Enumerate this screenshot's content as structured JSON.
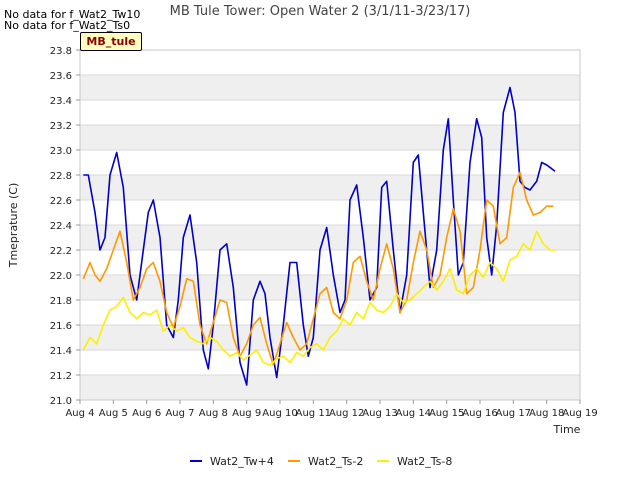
{
  "notes": [
    "No data for f_Wat2_Tw10",
    "No data for f_Wat2_Ts0"
  ],
  "badge": "MB_tule",
  "chart_data": {
    "type": "line",
    "title": "MB Tule Tower: Open Water 2 (3/1/11-3/23/17)",
    "xlabel": "Time",
    "ylabel": "Tmeprature (C)",
    "x_ticks": [
      "Aug 4",
      "Aug 5",
      "Aug 6",
      "Aug 7",
      "Aug 8",
      "Aug 9",
      "Aug 10",
      "Aug 11",
      "Aug 12",
      "Aug 13",
      "Aug 14",
      "Aug 15",
      "Aug 16",
      "Aug 17",
      "Aug 18",
      "Aug 19"
    ],
    "xlim": [
      0,
      15
    ],
    "ylim": [
      21.0,
      23.8
    ],
    "y_ticks": [
      21.0,
      21.2,
      21.4,
      21.6,
      21.8,
      22.0,
      22.2,
      22.4,
      22.6,
      22.8,
      23.0,
      23.2,
      23.4,
      23.6,
      23.8
    ],
    "grid": true,
    "legend_position": "bottom",
    "series": [
      {
        "name": "Wat2_Tw+4",
        "color": "#0000cc",
        "x": [
          0.1,
          0.25,
          0.45,
          0.6,
          0.75,
          0.9,
          1.1,
          1.3,
          1.5,
          1.7,
          1.9,
          2.05,
          2.2,
          2.4,
          2.6,
          2.8,
          2.95,
          3.1,
          3.3,
          3.5,
          3.7,
          3.85,
          4.0,
          4.2,
          4.4,
          4.6,
          4.8,
          5.0,
          5.2,
          5.4,
          5.55,
          5.7,
          5.9,
          6.1,
          6.3,
          6.5,
          6.7,
          6.85,
          7.0,
          7.2,
          7.4,
          7.6,
          7.8,
          7.95,
          8.1,
          8.3,
          8.5,
          8.7,
          8.9,
          9.05,
          9.2,
          9.4,
          9.6,
          9.8,
          10.0,
          10.15,
          10.3,
          10.5,
          10.7,
          10.9,
          11.05,
          11.2,
          11.35,
          11.5,
          11.7,
          11.9,
          12.05,
          12.2,
          12.35,
          12.5,
          12.7,
          12.9,
          13.05,
          13.2,
          13.35,
          13.5,
          13.7,
          13.85,
          14.0,
          14.15,
          14.25
        ],
        "y": [
          22.8,
          22.8,
          22.5,
          22.2,
          22.3,
          22.8,
          22.98,
          22.7,
          22.0,
          21.8,
          22.2,
          22.5,
          22.6,
          22.3,
          21.6,
          21.5,
          21.8,
          22.3,
          22.48,
          22.1,
          21.4,
          21.25,
          21.6,
          22.2,
          22.25,
          21.9,
          21.3,
          21.12,
          21.8,
          21.95,
          21.85,
          21.5,
          21.18,
          21.6,
          22.1,
          22.1,
          21.6,
          21.35,
          21.5,
          22.2,
          22.38,
          22.0,
          21.7,
          21.8,
          22.6,
          22.72,
          22.3,
          21.8,
          21.9,
          22.7,
          22.75,
          22.2,
          21.7,
          22.0,
          22.9,
          22.96,
          22.5,
          21.9,
          22.2,
          23.0,
          23.25,
          22.6,
          22.0,
          22.1,
          22.9,
          23.25,
          23.1,
          22.3,
          22.0,
          22.4,
          23.3,
          23.5,
          23.3,
          22.75,
          22.7,
          22.68,
          22.75,
          22.9,
          22.88,
          22.85,
          22.83
        ]
      },
      {
        "name": "Wat2_Ts-2",
        "color": "#ff9900",
        "x": [
          0.1,
          0.3,
          0.45,
          0.6,
          0.8,
          1.0,
          1.2,
          1.4,
          1.6,
          1.8,
          2.0,
          2.2,
          2.4,
          2.6,
          2.8,
          3.0,
          3.2,
          3.4,
          3.6,
          3.8,
          4.0,
          4.2,
          4.4,
          4.6,
          4.8,
          5.0,
          5.2,
          5.4,
          5.6,
          5.8,
          6.0,
          6.2,
          6.4,
          6.6,
          6.8,
          7.0,
          7.2,
          7.4,
          7.6,
          7.8,
          8.0,
          8.2,
          8.4,
          8.6,
          8.8,
          9.0,
          9.2,
          9.4,
          9.6,
          9.8,
          10.0,
          10.2,
          10.4,
          10.6,
          10.8,
          11.0,
          11.2,
          11.4,
          11.6,
          11.8,
          12.0,
          12.2,
          12.4,
          12.6,
          12.8,
          13.0,
          13.2,
          13.4,
          13.6,
          13.8,
          14.0,
          14.2
        ],
        "y": [
          21.97,
          22.1,
          22.0,
          21.95,
          22.05,
          22.2,
          22.35,
          22.1,
          21.8,
          21.9,
          22.05,
          22.1,
          21.95,
          21.7,
          21.58,
          21.75,
          21.97,
          21.95,
          21.6,
          21.45,
          21.62,
          21.8,
          21.78,
          21.5,
          21.35,
          21.45,
          21.6,
          21.66,
          21.45,
          21.28,
          21.45,
          21.62,
          21.5,
          21.4,
          21.45,
          21.65,
          21.85,
          21.9,
          21.7,
          21.65,
          21.8,
          22.1,
          22.15,
          21.95,
          21.8,
          22.05,
          22.25,
          22.05,
          21.7,
          21.8,
          22.1,
          22.35,
          22.2,
          21.9,
          22.0,
          22.3,
          22.53,
          22.35,
          21.85,
          21.9,
          22.2,
          22.6,
          22.55,
          22.25,
          22.3,
          22.7,
          22.82,
          22.6,
          22.48,
          22.5,
          22.55,
          22.55
        ]
      },
      {
        "name": "Wat2_Ts-8",
        "color": "#ffee00",
        "x": [
          0.1,
          0.3,
          0.5,
          0.7,
          0.9,
          1.1,
          1.3,
          1.5,
          1.7,
          1.9,
          2.1,
          2.3,
          2.5,
          2.7,
          2.9,
          3.1,
          3.3,
          3.5,
          3.7,
          3.9,
          4.1,
          4.3,
          4.5,
          4.7,
          4.9,
          5.1,
          5.3,
          5.5,
          5.7,
          5.9,
          6.1,
          6.3,
          6.5,
          6.7,
          6.9,
          7.1,
          7.3,
          7.5,
          7.7,
          7.9,
          8.1,
          8.3,
          8.5,
          8.7,
          8.9,
          9.1,
          9.3,
          9.5,
          9.7,
          9.9,
          10.1,
          10.3,
          10.5,
          10.7,
          10.9,
          11.1,
          11.3,
          11.5,
          11.7,
          11.9,
          12.1,
          12.3,
          12.5,
          12.7,
          12.9,
          13.1,
          13.3,
          13.5,
          13.7,
          13.9,
          14.1,
          14.25
        ],
        "y": [
          21.4,
          21.5,
          21.45,
          21.6,
          21.72,
          21.75,
          21.82,
          21.7,
          21.65,
          21.7,
          21.68,
          21.72,
          21.55,
          21.6,
          21.55,
          21.58,
          21.5,
          21.47,
          21.45,
          21.5,
          21.47,
          21.4,
          21.35,
          21.38,
          21.32,
          21.36,
          21.4,
          21.3,
          21.28,
          21.33,
          21.35,
          21.3,
          21.38,
          21.35,
          21.42,
          21.45,
          21.4,
          21.5,
          21.55,
          21.65,
          21.6,
          21.7,
          21.65,
          21.78,
          21.72,
          21.7,
          21.75,
          21.85,
          21.78,
          21.8,
          21.85,
          21.9,
          21.95,
          21.88,
          21.95,
          22.05,
          21.88,
          21.85,
          22.0,
          22.05,
          21.98,
          22.1,
          22.05,
          21.95,
          22.12,
          22.15,
          22.25,
          22.2,
          22.35,
          22.25,
          22.2,
          22.2
        ]
      }
    ]
  }
}
